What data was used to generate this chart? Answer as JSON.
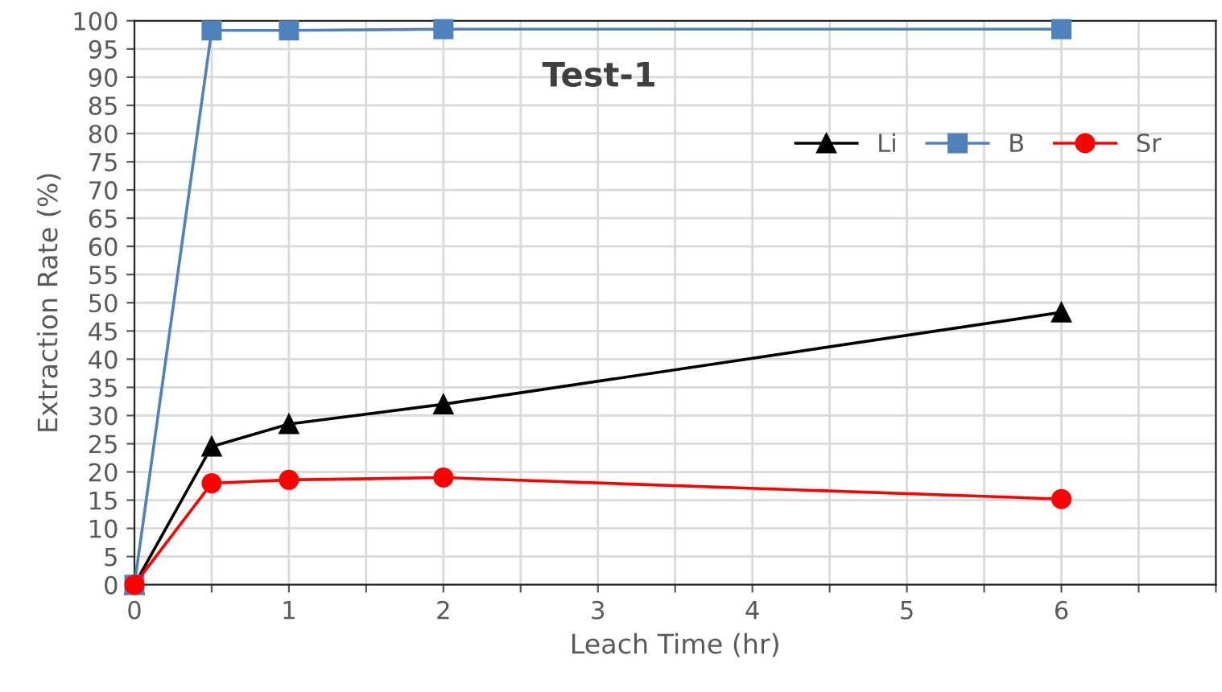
{
  "chart_data": {
    "type": "line",
    "title": "Test-1",
    "xlabel": "Leach Time (hr)",
    "ylabel": "Extraction Rate (%)",
    "x": [
      0,
      0.5,
      1,
      2,
      6
    ],
    "series": [
      {
        "name": "Li",
        "color": "#000000",
        "marker": "triangle",
        "values": [
          0,
          24.5,
          28.5,
          32,
          48.3
        ]
      },
      {
        "name": "B",
        "color": "#4f81bd",
        "marker": "square",
        "values": [
          0,
          98.3,
          98.3,
          98.5,
          98.5
        ]
      },
      {
        "name": "Sr",
        "color": "#ff0000",
        "marker": "circle",
        "values": [
          0,
          18,
          18.6,
          19,
          15.2
        ]
      }
    ],
    "xlim": [
      0,
      7
    ],
    "xticks": [
      0,
      {
        "value": 0.5,
        "label": null
      },
      1,
      {
        "value": 1.5,
        "label": null
      },
      2,
      {
        "value": 2.5,
        "label": null
      },
      3,
      {
        "value": 3.5,
        "label": null
      },
      4,
      {
        "value": 4.5,
        "label": null
      },
      5,
      {
        "value": 5.5,
        "label": null
      },
      6,
      {
        "value": 6.5,
        "label": null
      },
      {
        "value": 7,
        "label": null
      }
    ],
    "ylim": [
      0,
      100
    ],
    "yticks": [
      0,
      5,
      10,
      15,
      20,
      25,
      30,
      35,
      40,
      45,
      50,
      55,
      60,
      65,
      70,
      75,
      80,
      85,
      90,
      95,
      100
    ],
    "grid": true,
    "legend": "top right",
    "line_style": "solid"
  }
}
